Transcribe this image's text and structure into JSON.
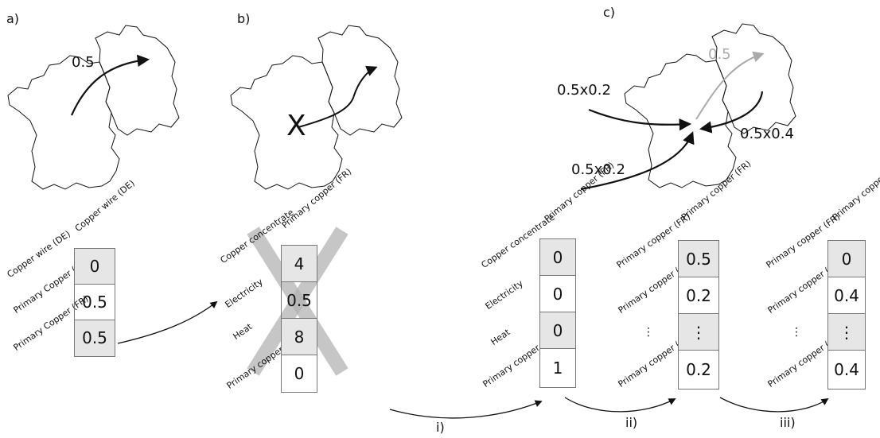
{
  "panels": {
    "a": {
      "label": "a)",
      "flow_label": "0.5",
      "column_header": "Copper wire (DE)",
      "rows": [
        "Copper wire (DE)",
        "Primary Copper (DE)",
        "Primary Copper (FR)"
      ],
      "values": [
        "0",
        "0.5",
        "0.5"
      ]
    },
    "b": {
      "label": "b)",
      "cross_mark": "X",
      "column_header": "Primary copper (FR)",
      "rows": [
        "Copper concentrate",
        "Electricity",
        "Heat",
        "Primary copper"
      ],
      "values": [
        "4",
        "0.5",
        "8",
        "0"
      ]
    },
    "c": {
      "label": "c)",
      "flow_faded": "0.5",
      "flow_labels": [
        "0.5x0.2",
        "0.5x0.4",
        "0.5x0.2"
      ],
      "vectors": [
        {
          "column_header": "Primary copper (FR)",
          "rows": [
            "Copper concentrate",
            "Electricity",
            "Heat",
            "Primary copper"
          ],
          "values": [
            "0",
            "0",
            "0",
            "1"
          ]
        },
        {
          "column_header": "Primary copper (FR)",
          "rows": [
            "Primary copper (FR)",
            "Primary copper (DE)",
            "⋮",
            "Primary copper (CL)"
          ],
          "values": [
            "0.5",
            "0.2",
            "⋮",
            "0.2"
          ]
        },
        {
          "column_header": "Primary copper (FR)",
          "rows": [
            "Primary copper (FR)",
            "Primary copper (DE)",
            "⋮",
            "Primary copper (CL)"
          ],
          "values": [
            "0",
            "0.4",
            "⋮",
            "0.4"
          ]
        }
      ]
    }
  },
  "steps": [
    "i)",
    "ii)",
    "iii)"
  ]
}
